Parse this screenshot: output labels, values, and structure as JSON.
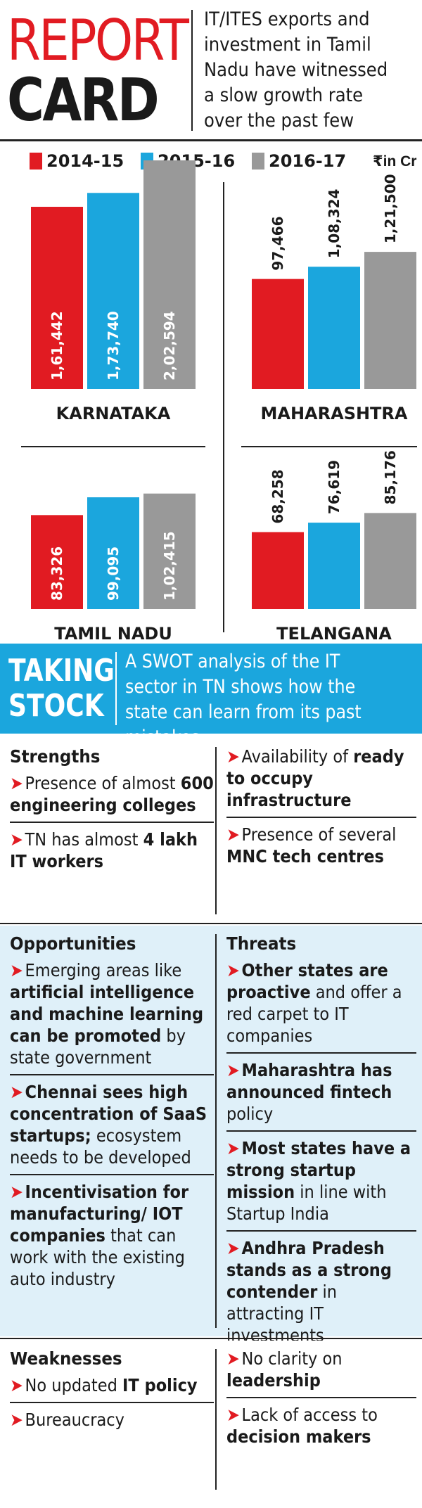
{
  "header": {
    "title_line1": "REPORT",
    "title_line2": "CARD",
    "description": "IT/ITES exports and investment in Tamil Nadu have witnessed a slow growth rate over the past few years"
  },
  "legend": {
    "items": [
      {
        "label": "2014-15",
        "color": "#e11b22"
      },
      {
        "label": "2015-16",
        "color": "#1ba6dd"
      },
      {
        "label": "2016-17",
        "color": "#999999"
      }
    ],
    "unit": "₹in Cr"
  },
  "chart_data": {
    "type": "bar",
    "title": "",
    "unit": "₹in Cr",
    "series_names": [
      "2014-15",
      "2015-16",
      "2016-17"
    ],
    "colors": [
      "#e11b22",
      "#1ba6dd",
      "#999999"
    ],
    "states": [
      {
        "name": "KARNATAKA",
        "values": [
          161442,
          173740,
          202594
        ],
        "labels": [
          "1,61,442",
          "1,73,740",
          "2,02,594"
        ]
      },
      {
        "name": "MAHARASHTRA",
        "values": [
          97466,
          108324,
          121500
        ],
        "labels": [
          "97,466",
          "1,08,324",
          "1,21,500"
        ]
      },
      {
        "name": "TAMIL NADU",
        "values": [
          83326,
          99095,
          102415
        ],
        "labels": [
          "83,326",
          "99,095",
          "1,02,415"
        ]
      },
      {
        "name": "TELANGANA",
        "values": [
          68258,
          76619,
          85176
        ],
        "labels": [
          "68,258",
          "76,619",
          "85,176"
        ]
      }
    ]
  },
  "banner": {
    "title_line1": "TAKING",
    "title_line2": "STOCK",
    "description": "A SWOT analysis of the IT sector in TN shows how the state can learn from its past mistakes"
  },
  "swot": {
    "strengths": {
      "heading": "Strengths",
      "items": [
        {
          "pre": "Presence of almost ",
          "bold": "600 engineering colleges",
          "post": ""
        },
        {
          "pre": "TN has almost ",
          "bold": "4 lakh IT workers",
          "post": ""
        },
        {
          "pre": "Availability of ",
          "bold": "ready to occupy infrastructure",
          "post": ""
        },
        {
          "pre": "Presence of several ",
          "bold": "MNC tech centres",
          "post": ""
        }
      ]
    },
    "opportunities": {
      "heading": "Opportunities",
      "items": [
        {
          "pre": "Emerging areas like ",
          "bold": "artificial intelligence and machine learning can be promoted",
          "post": " by state government"
        },
        {
          "pre": "",
          "bold": "Chennai sees high concentration of SaaS startups;",
          "post": " ecosystem needs to be developed"
        },
        {
          "pre": "",
          "bold": "Incentivisation for manufacturing/ IOT companies",
          "post": " that can work with the existing auto industry"
        }
      ]
    },
    "threats": {
      "heading": "Threats",
      "items": [
        {
          "pre": "",
          "bold": "Other states are proactive",
          "post": " and offer a red carpet to IT companies"
        },
        {
          "pre": "",
          "bold": "Maharashtra has announced fintech",
          "post": " policy"
        },
        {
          "pre": "",
          "bold": "Most states have a strong startup mission",
          "post": " in line with Startup India"
        },
        {
          "pre": "",
          "bold": "Andhra Pradesh stands as a strong contender",
          "post": " in attracting IT investments"
        }
      ]
    },
    "weaknesses": {
      "heading": "Weaknesses",
      "items": [
        {
          "pre": "No updated ",
          "bold": "IT policy",
          "post": ""
        },
        {
          "pre": "Bureaucracy",
          "bold": "",
          "post": ""
        },
        {
          "pre": "No clarity on ",
          "bold": "leadership",
          "post": ""
        },
        {
          "pre": "Lack of access to ",
          "bold": "decision makers",
          "post": ""
        }
      ]
    }
  }
}
